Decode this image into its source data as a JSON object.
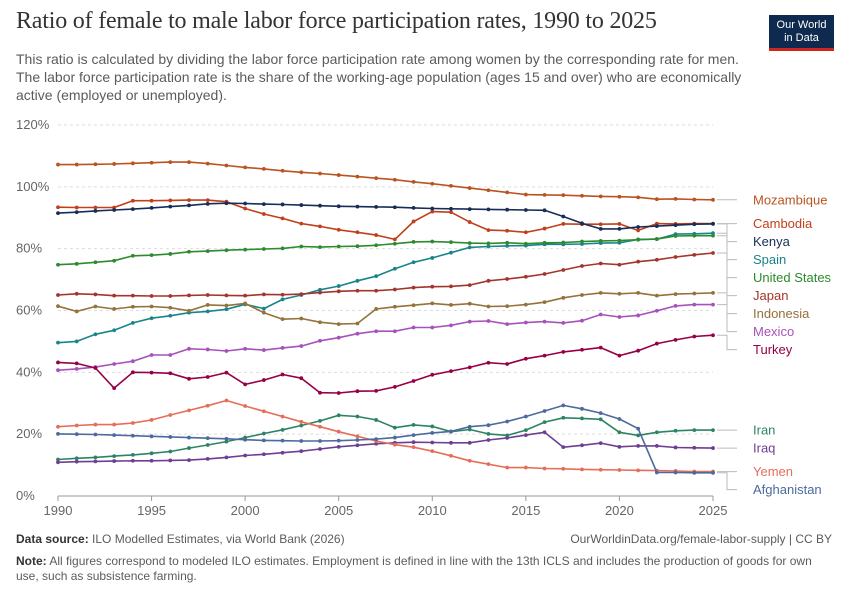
{
  "header": {
    "title": "Ratio of female to male labor force participation rates, 1990 to 2025",
    "subtitle": "This ratio is calculated by dividing the labor force participation rate among women by the corresponding rate for men. The labor force participation rate is the share of the working-age population (ages 15 and over) who are economically active (employed or unemployed).",
    "logo_line1": "Our World",
    "logo_line2": "in Data",
    "logo_color": "#0f2a4f",
    "logo_accent": "#ce261e"
  },
  "footer": {
    "source_label": "Data source:",
    "source_text": "ILO Modelled Estimates, via World Bank (2026)",
    "url": "OurWorldinData.org/female-labor-supply | CC BY",
    "note_label": "Note:",
    "note_text": "All figures correspond to modeled ILO estimates. Employment is defined in line with the 13th ICLS and includes the production of goods for own use, such as subsistence farming."
  },
  "chart_data": {
    "type": "line",
    "x": [
      1990,
      1991,
      1992,
      1993,
      1994,
      1995,
      1996,
      1997,
      1998,
      1999,
      2000,
      2001,
      2002,
      2003,
      2004,
      2005,
      2006,
      2007,
      2008,
      2009,
      2010,
      2011,
      2012,
      2013,
      2014,
      2015,
      2016,
      2017,
      2018,
      2019,
      2020,
      2021,
      2022,
      2023,
      2024,
      2025
    ],
    "xlim": [
      1990,
      2025
    ],
    "ylim": [
      0,
      120
    ],
    "x_ticks": [
      1990,
      1995,
      2000,
      2005,
      2010,
      2015,
      2020,
      2025
    ],
    "y_ticks": [
      0,
      20,
      40,
      60,
      80,
      100,
      120
    ],
    "y_tick_labels": [
      "0%",
      "20%",
      "40%",
      "60%",
      "80%",
      "100%",
      "120%"
    ],
    "grid": "horizontal dashed",
    "legend": "right, labels at line ends",
    "series": [
      {
        "name": "Mozambique",
        "color": "#b9541f",
        "values": [
          107.2,
          107.2,
          107.3,
          107.4,
          107.6,
          107.8,
          108.0,
          108.0,
          107.5,
          106.9,
          106.3,
          105.8,
          105.2,
          104.7,
          104.3,
          103.8,
          103.3,
          102.8,
          102.3,
          101.6,
          101.0,
          100.3,
          99.6,
          98.9,
          98.2,
          97.5,
          97.4,
          97.3,
          97.1,
          96.9,
          96.8,
          96.6,
          96.0,
          96.1,
          95.9,
          95.8
        ]
      },
      {
        "name": "Cambodia",
        "color": "#c0401d",
        "values": [
          93.4,
          93.3,
          93.3,
          93.3,
          95.5,
          95.5,
          95.6,
          95.7,
          95.7,
          95.2,
          93.0,
          91.2,
          89.8,
          88.1,
          87.2,
          86.1,
          85.3,
          84.4,
          83.0,
          88.8,
          92.0,
          91.8,
          88.6,
          86.0,
          85.8,
          85.3,
          86.5,
          88.0,
          87.9,
          87.9,
          88.0,
          85.9,
          88.1,
          88.0,
          88.1,
          88.1
        ]
      },
      {
        "name": "Kenya",
        "color": "#162e57",
        "values": [
          91.5,
          91.8,
          92.2,
          92.5,
          92.8,
          93.2,
          93.6,
          94.0,
          94.5,
          94.7,
          94.6,
          94.4,
          94.3,
          94.1,
          93.9,
          93.7,
          93.6,
          93.5,
          93.4,
          93.2,
          93.0,
          92.9,
          92.8,
          92.7,
          92.6,
          92.5,
          92.4,
          90.4,
          88.2,
          86.4,
          86.4,
          87.0,
          87.3,
          87.6,
          87.9,
          88.0
        ]
      },
      {
        "name": "Spain",
        "color": "#18858b",
        "values": [
          49.6,
          50.0,
          52.3,
          53.6,
          56.0,
          57.5,
          58.3,
          59.3,
          59.7,
          60.4,
          62.0,
          60.6,
          63.6,
          65.0,
          66.7,
          67.9,
          69.6,
          71.1,
          73.5,
          75.6,
          77.0,
          78.7,
          80.4,
          80.7,
          80.9,
          81.0,
          81.4,
          81.4,
          81.5,
          81.8,
          81.9,
          83.0,
          83.1,
          84.7,
          84.8,
          85.0
        ]
      },
      {
        "name": "United States",
        "color": "#2e8a2e",
        "values": [
          74.8,
          75.1,
          75.6,
          76.1,
          77.7,
          77.9,
          78.3,
          79.0,
          79.2,
          79.5,
          79.7,
          79.9,
          80.1,
          80.7,
          80.5,
          80.7,
          80.8,
          81.1,
          81.6,
          82.2,
          82.3,
          82.1,
          81.8,
          81.7,
          81.9,
          81.6,
          81.9,
          82.0,
          82.3,
          82.5,
          82.6,
          82.9,
          83.1,
          84.1,
          84.2,
          84.2
        ]
      },
      {
        "name": "Japan",
        "color": "#a2352d",
        "values": [
          65.0,
          65.4,
          65.2,
          64.8,
          64.8,
          64.7,
          64.7,
          64.9,
          65.0,
          64.9,
          64.8,
          65.2,
          65.1,
          65.3,
          65.8,
          66.2,
          66.4,
          66.4,
          66.8,
          67.4,
          67.7,
          67.8,
          68.2,
          69.6,
          70.2,
          70.9,
          71.8,
          73.1,
          74.4,
          75.2,
          74.8,
          75.8,
          76.4,
          77.3,
          78.0,
          78.6
        ]
      },
      {
        "name": "Indonesia",
        "color": "#93723b",
        "values": [
          61.4,
          59.7,
          61.3,
          60.5,
          61.2,
          61.3,
          60.9,
          59.9,
          61.8,
          61.6,
          62.3,
          59.3,
          57.2,
          57.4,
          56.2,
          55.6,
          55.8,
          60.5,
          61.2,
          61.7,
          62.3,
          61.8,
          62.2,
          61.3,
          61.4,
          61.9,
          62.7,
          64.1,
          65.0,
          65.7,
          65.4,
          65.7,
          64.8,
          65.3,
          65.5,
          65.7
        ]
      },
      {
        "name": "Mexico",
        "color": "#a652ba",
        "values": [
          40.7,
          41.1,
          41.7,
          42.7,
          43.6,
          45.6,
          45.6,
          47.6,
          47.4,
          46.9,
          47.6,
          47.2,
          47.9,
          48.5,
          50.2,
          51.2,
          52.5,
          53.3,
          53.3,
          54.5,
          54.5,
          55.2,
          56.4,
          56.6,
          55.6,
          56.1,
          56.4,
          56.0,
          56.7,
          58.7,
          57.9,
          58.4,
          59.9,
          61.5,
          61.9,
          61.9
        ]
      },
      {
        "name": "Turkey",
        "color": "#970046",
        "values": [
          43.2,
          42.9,
          41.4,
          34.9,
          40.0,
          39.9,
          39.7,
          37.9,
          38.5,
          39.9,
          36.1,
          37.5,
          39.3,
          38.1,
          33.4,
          33.3,
          33.9,
          34.0,
          35.3,
          37.2,
          39.2,
          40.4,
          41.6,
          43.1,
          42.7,
          44.4,
          45.4,
          46.6,
          47.3,
          48.0,
          45.4,
          47.0,
          49.3,
          50.5,
          51.6,
          52.0
        ]
      },
      {
        "name": "Iran",
        "color": "#2c8465",
        "values": [
          11.8,
          12.2,
          12.5,
          12.9,
          13.3,
          13.8,
          14.4,
          15.5,
          16.5,
          17.6,
          18.9,
          20.2,
          21.4,
          22.8,
          24.3,
          26.1,
          25.7,
          24.6,
          22.1,
          23.0,
          22.5,
          20.8,
          21.5,
          20.1,
          19.6,
          21.3,
          23.9,
          25.3,
          25.1,
          24.8,
          20.6,
          19.6,
          20.6,
          21.1,
          21.3,
          21.3
        ]
      },
      {
        "name": "Iraq",
        "color": "#6d3e91",
        "values": [
          10.9,
          11.1,
          11.2,
          11.3,
          11.4,
          11.4,
          11.5,
          11.6,
          12.0,
          12.5,
          13.1,
          13.5,
          14.0,
          14.5,
          15.2,
          15.9,
          16.4,
          16.9,
          17.2,
          17.4,
          17.3,
          17.2,
          17.2,
          18.1,
          18.8,
          19.7,
          20.6,
          15.8,
          16.4,
          17.1,
          15.9,
          16.2,
          16.2,
          15.7,
          15.6,
          15.5
        ]
      },
      {
        "name": "Yemen",
        "color": "#e56e5a",
        "values": [
          22.4,
          22.8,
          23.1,
          23.1,
          23.6,
          24.6,
          26.2,
          27.7,
          29.2,
          30.9,
          29.1,
          27.4,
          25.7,
          24.0,
          22.4,
          20.8,
          19.3,
          17.8,
          16.6,
          15.8,
          14.5,
          13.0,
          11.4,
          10.3,
          9.2,
          9.2,
          8.9,
          8.8,
          8.6,
          8.5,
          8.4,
          8.3,
          8.2,
          8.1,
          7.9,
          7.9
        ]
      },
      {
        "name": "Afghanistan",
        "color": "#4c6a9c",
        "values": [
          20.1,
          20.0,
          19.9,
          19.7,
          19.5,
          19.3,
          19.1,
          18.9,
          18.7,
          18.5,
          18.2,
          18.0,
          17.9,
          17.8,
          17.8,
          17.9,
          18.1,
          18.4,
          18.9,
          19.7,
          20.4,
          20.9,
          22.4,
          22.9,
          24.1,
          25.7,
          27.5,
          29.3,
          28.2,
          26.8,
          24.9,
          21.8,
          7.6,
          7.6,
          7.5,
          7.5
        ]
      }
    ]
  }
}
